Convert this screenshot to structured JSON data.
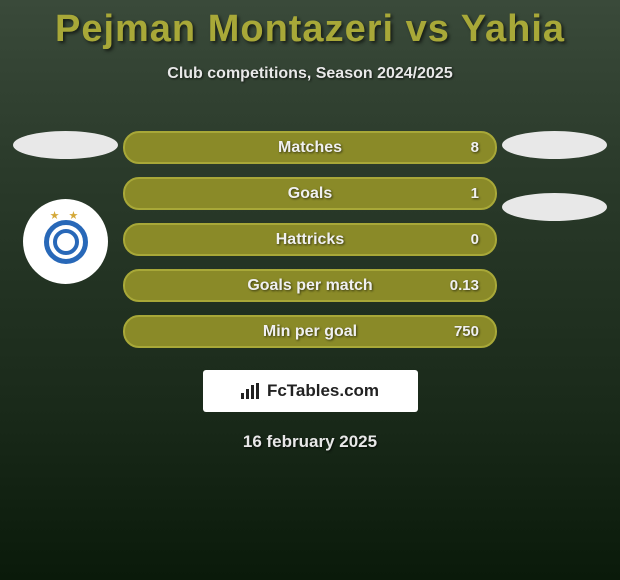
{
  "title": "Pejman Montazeri vs Yahia",
  "subtitle": "Club competitions, Season 2024/2025",
  "date": "16 february 2025",
  "logo_text": "FcTables.com",
  "colors": {
    "title": "#a8a838",
    "bar_border": "#a8a838",
    "bar_fill": "#8a8a28",
    "text_light": "#e8e8e8"
  },
  "stats": [
    {
      "label": "Matches",
      "right_value": "8"
    },
    {
      "label": "Goals",
      "right_value": "1"
    },
    {
      "label": "Hattricks",
      "right_value": "0"
    },
    {
      "label": "Goals per match",
      "right_value": "0.13"
    },
    {
      "label": "Min per goal",
      "right_value": "750"
    }
  ],
  "left_player": {
    "has_club_badge": true
  },
  "right_player": {
    "has_club_badge": false
  }
}
